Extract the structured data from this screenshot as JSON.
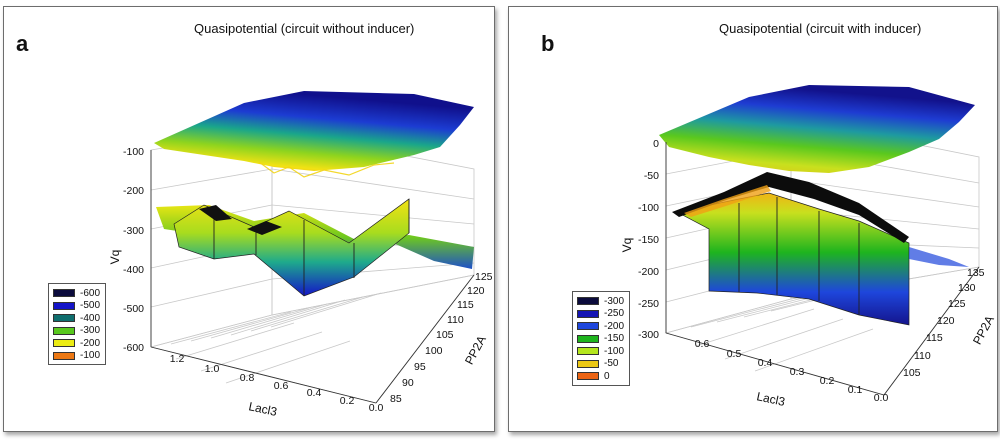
{
  "chart_data": [
    {
      "type": "surface3d",
      "panel_label": "a",
      "title": "Quasipotential (circuit without inducer)",
      "zlabel": "Vq",
      "xlabel": "Lacl3",
      "ylabel": "PP2A",
      "zticks": [
        "-100",
        "-200",
        "-300",
        "-400",
        "-500",
        "-600"
      ],
      "xticks": [
        "1.2",
        "1.0",
        "0.8",
        "0.6",
        "0.4",
        "0.2",
        "0.0"
      ],
      "yticks": [
        "85",
        "90",
        "95",
        "100",
        "105",
        "110",
        "115",
        "120",
        "125"
      ],
      "zlim": [
        -600,
        -100
      ],
      "legend": [
        {
          "label": "-600",
          "color": "#0b0b3c"
        },
        {
          "label": "-500",
          "color": "#1414c8"
        },
        {
          "label": "-400",
          "color": "#0f6e6e"
        },
        {
          "label": "-300",
          "color": "#58c81e"
        },
        {
          "label": "-200",
          "color": "#ecec14"
        },
        {
          "label": "-100",
          "color": "#ec7814"
        }
      ]
    },
    {
      "type": "surface3d",
      "panel_label": "b",
      "title": "Quasipotential (circuit with inducer)",
      "zlabel": "Vq",
      "xlabel": "Lacl3",
      "ylabel": "PP2A",
      "zticks": [
        "0",
        "-50",
        "-100",
        "-150",
        "-200",
        "-250",
        "-300"
      ],
      "xticks": [
        "0.6",
        "0.5",
        "0.4",
        "0.3",
        "0.2",
        "0.1",
        "0.0"
      ],
      "yticks": [
        "105",
        "110",
        "115",
        "120",
        "125",
        "130",
        "135"
      ],
      "zlim": [
        -300,
        0
      ],
      "legend": [
        {
          "label": "-300",
          "color": "#0b0b3c"
        },
        {
          "label": "-250",
          "color": "#1414b4"
        },
        {
          "label": "-200",
          "color": "#1e46dc"
        },
        {
          "label": "-150",
          "color": "#1eb41e"
        },
        {
          "label": "-100",
          "color": "#b4e61e"
        },
        {
          "label": "-50",
          "color": "#ecc814"
        },
        {
          "label": "0",
          "color": "#ec6414"
        }
      ]
    }
  ]
}
